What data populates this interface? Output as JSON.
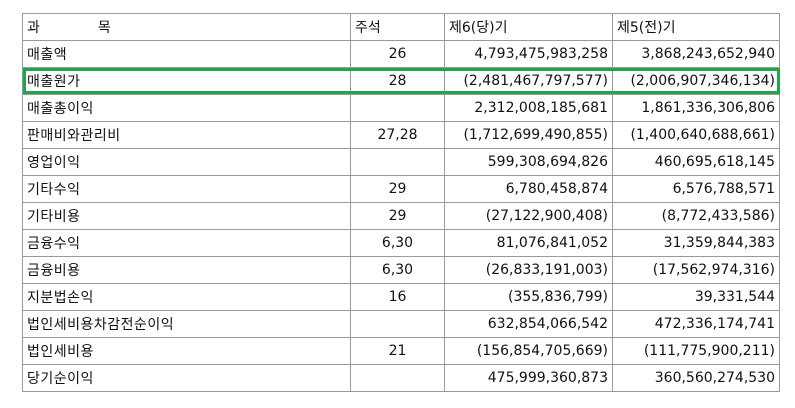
{
  "table": {
    "headers": {
      "account_left": "과",
      "account_right": "목",
      "note": "주석",
      "current": "제6(당)기",
      "prior": "제5(전)기"
    },
    "rows": [
      {
        "account": "매출액",
        "note": "26",
        "current": "4,793,475,983,258",
        "prior": "3,868,243,652,940"
      },
      {
        "account": "매출원가",
        "note": "28",
        "current": "(2,481,467,797,577)",
        "prior": "(2,006,907,346,134)"
      },
      {
        "account": "매출총이익",
        "note": "",
        "current": "2,312,008,185,681",
        "prior": "1,861,336,306,806"
      },
      {
        "account": "판매비와관리비",
        "note": "27,28",
        "current": "(1,712,699,490,855)",
        "prior": "(1,400,640,688,661)"
      },
      {
        "account": "영업이익",
        "note": "",
        "current": "599,308,694,826",
        "prior": "460,695,618,145"
      },
      {
        "account": "기타수익",
        "note": "29",
        "current": "6,780,458,874",
        "prior": "6,576,788,571"
      },
      {
        "account": "기타비용",
        "note": "29",
        "current": "(27,122,900,408)",
        "prior": "(8,772,433,586)"
      },
      {
        "account": "금융수익",
        "note": "6,30",
        "current": "81,076,841,052",
        "prior": "31,359,844,383"
      },
      {
        "account": "금융비용",
        "note": "6,30",
        "current": "(26,833,191,003)",
        "prior": "(17,562,974,316)"
      },
      {
        "account": "지분법손익",
        "note": "16",
        "current": "(355,836,799)",
        "prior": "39,331,544"
      },
      {
        "account": "법인세비용차감전순이익",
        "note": "",
        "current": "632,854,066,542",
        "prior": "472,336,174,741"
      },
      {
        "account": "법인세비용",
        "note": "21",
        "current": "(156,854,705,669)",
        "prior": "(111,775,900,211)"
      },
      {
        "account": "당기순이익",
        "note": "",
        "current": "475,999,360,873",
        "prior": "360,560,274,530"
      }
    ]
  },
  "highlight": {
    "row": "매출원가",
    "color": "#1fa64a"
  }
}
